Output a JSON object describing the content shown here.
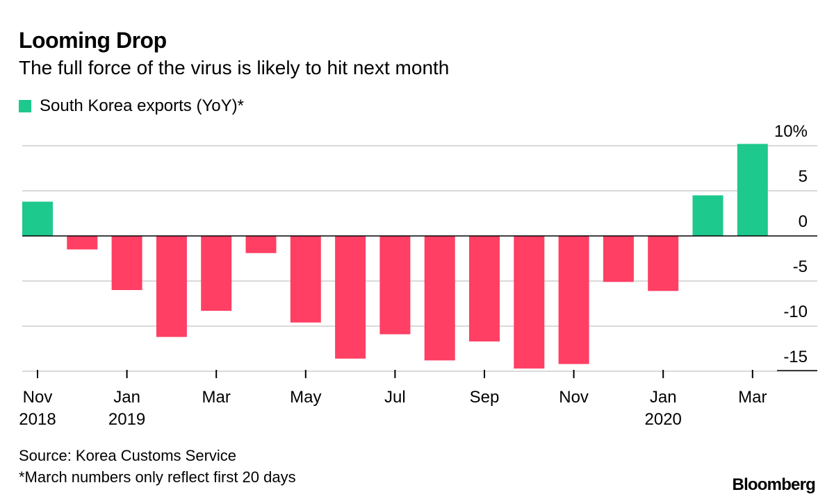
{
  "chart_data": {
    "type": "bar",
    "title": "Looming Drop",
    "subtitle": "The full force of the virus is likely to hit next month",
    "categories": [
      "Nov 2018",
      "Dec 2018",
      "Jan 2019",
      "Feb 2019",
      "Mar 2019",
      "Apr 2019",
      "May 2019",
      "Jun 2019",
      "Jul 2019",
      "Aug 2019",
      "Sep 2019",
      "Oct 2019",
      "Nov 2019",
      "Dec 2019",
      "Jan 2020",
      "Feb 2020",
      "Mar 2020"
    ],
    "series": [
      {
        "name": "South Korea exports (YoY)*",
        "values": [
          3.8,
          -1.5,
          -6.0,
          -11.2,
          -8.3,
          -1.9,
          -9.6,
          -13.6,
          -10.9,
          -13.8,
          -11.7,
          -14.7,
          -14.2,
          -5.1,
          -6.1,
          4.5,
          10.2
        ]
      }
    ],
    "colors": {
      "positive": "#1ec98d",
      "negative": "#ff3f64"
    },
    "x_ticks": [
      {
        "index": 0,
        "line1": "Nov",
        "line2": "2018"
      },
      {
        "index": 2,
        "line1": "Jan",
        "line2": "2019"
      },
      {
        "index": 4,
        "line1": "Mar",
        "line2": ""
      },
      {
        "index": 6,
        "line1": "May",
        "line2": ""
      },
      {
        "index": 8,
        "line1": "Jul",
        "line2": ""
      },
      {
        "index": 10,
        "line1": "Sep",
        "line2": ""
      },
      {
        "index": 12,
        "line1": "Nov",
        "line2": ""
      },
      {
        "index": 14,
        "line1": "Jan",
        "line2": "2020"
      },
      {
        "index": 16,
        "line1": "Mar",
        "line2": ""
      }
    ],
    "y_ticks": [
      {
        "value": 10,
        "label": "10%"
      },
      {
        "value": 5,
        "label": "5"
      },
      {
        "value": 0,
        "label": "0"
      },
      {
        "value": -5,
        "label": "-5"
      },
      {
        "value": -10,
        "label": "-10"
      },
      {
        "value": -15,
        "label": "-15"
      }
    ],
    "ylim": [
      -15,
      10
    ],
    "ylabel": "",
    "xlabel": "",
    "grid": true,
    "legend": "top-left",
    "y_axis_position": "right"
  },
  "legend": {
    "label": "South Korea exports (YoY)*",
    "color": "#1ec98d"
  },
  "footer": {
    "source": "Source: Korea Customs Service",
    "note": "*March numbers only reflect first 20 days",
    "logo": "Bloomberg"
  }
}
